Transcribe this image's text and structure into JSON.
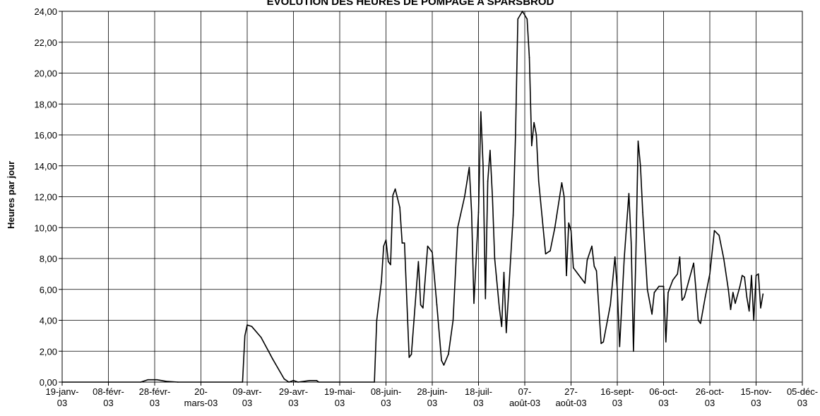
{
  "chart_data": {
    "type": "line",
    "title": "EVOLUTION DES HEURES DE POMPAGE A SPARSBROD",
    "xlabel": "",
    "ylabel": "Heures par jour",
    "ylim": [
      0,
      24
    ],
    "y_ticks": [
      "0,00",
      "2,00",
      "4,00",
      "6,00",
      "8,00",
      "10,00",
      "12,00",
      "14,00",
      "16,00",
      "18,00",
      "20,00",
      "22,00",
      "24,00"
    ],
    "x_range": [
      "2003-01-19",
      "2003-12-05"
    ],
    "x_ticks": [
      {
        "date": "2003-01-19",
        "line1": "19-janv-",
        "line2": "03"
      },
      {
        "date": "2003-02-08",
        "line1": "08-févr-",
        "line2": "03"
      },
      {
        "date": "2003-02-28",
        "line1": "28-févr-",
        "line2": "03"
      },
      {
        "date": "2003-03-20",
        "line1": "20-",
        "line2": "mars-03"
      },
      {
        "date": "2003-04-09",
        "line1": "09-avr-",
        "line2": "03"
      },
      {
        "date": "2003-04-29",
        "line1": "29-avr-",
        "line2": "03"
      },
      {
        "date": "2003-05-19",
        "line1": "19-mai-",
        "line2": "03"
      },
      {
        "date": "2003-06-08",
        "line1": "08-juin-",
        "line2": "03"
      },
      {
        "date": "2003-06-28",
        "line1": "28-juin-",
        "line2": "03"
      },
      {
        "date": "2003-07-18",
        "line1": "18-juil-",
        "line2": "03"
      },
      {
        "date": "2003-08-07",
        "line1": "07-",
        "line2": "août-03"
      },
      {
        "date": "2003-08-27",
        "line1": "27-",
        "line2": "août-03"
      },
      {
        "date": "2003-09-16",
        "line1": "16-sept-",
        "line2": "03"
      },
      {
        "date": "2003-10-06",
        "line1": "06-oct-",
        "line2": "03"
      },
      {
        "date": "2003-10-26",
        "line1": "26-oct-",
        "line2": "03"
      },
      {
        "date": "2003-11-15",
        "line1": "15-nov-",
        "line2": "03"
      },
      {
        "date": "2003-12-05",
        "line1": "05-déc-",
        "line2": "03"
      }
    ],
    "grid": true,
    "legend": "none",
    "line_color": "#000000",
    "series": [
      {
        "points": [
          [
            "2003-01-19",
            0
          ],
          [
            "2003-02-22",
            0
          ],
          [
            "2003-02-25",
            0.15
          ],
          [
            "2003-03-01",
            0.15
          ],
          [
            "2003-03-05",
            0.05
          ],
          [
            "2003-03-10",
            0
          ],
          [
            "2003-04-07",
            0
          ],
          [
            "2003-04-08",
            3.0
          ],
          [
            "2003-04-09",
            3.7
          ],
          [
            "2003-04-11",
            3.6
          ],
          [
            "2003-04-15",
            2.9
          ],
          [
            "2003-04-20",
            1.5
          ],
          [
            "2003-04-25",
            0.2
          ],
          [
            "2003-04-27",
            0
          ],
          [
            "2003-04-29",
            0.1
          ],
          [
            "2003-05-01",
            0
          ],
          [
            "2003-05-06",
            0.1
          ],
          [
            "2003-05-09",
            0.1
          ],
          [
            "2003-05-10",
            0
          ],
          [
            "2003-06-03",
            0
          ],
          [
            "2003-06-04",
            4.0
          ],
          [
            "2003-06-06",
            6.5
          ],
          [
            "2003-06-07",
            8.8
          ],
          [
            "2003-06-08",
            9.2
          ],
          [
            "2003-06-09",
            7.8
          ],
          [
            "2003-06-10",
            7.6
          ],
          [
            "2003-06-11",
            12.1
          ],
          [
            "2003-06-12",
            12.5
          ],
          [
            "2003-06-14",
            11.3
          ],
          [
            "2003-06-15",
            9.0
          ],
          [
            "2003-06-16",
            9.0
          ],
          [
            "2003-06-18",
            1.6
          ],
          [
            "2003-06-19",
            1.8
          ],
          [
            "2003-06-21",
            5.8
          ],
          [
            "2003-06-22",
            7.8
          ],
          [
            "2003-06-23",
            5.0
          ],
          [
            "2003-06-24",
            4.8
          ],
          [
            "2003-06-26",
            8.8
          ],
          [
            "2003-06-28",
            8.4
          ],
          [
            "2003-06-30",
            5.0
          ],
          [
            "2003-07-02",
            1.4
          ],
          [
            "2003-07-03",
            1.1
          ],
          [
            "2003-07-05",
            1.8
          ],
          [
            "2003-07-07",
            4.0
          ],
          [
            "2003-07-09",
            10.0
          ],
          [
            "2003-07-12",
            12.0
          ],
          [
            "2003-07-14",
            13.9
          ],
          [
            "2003-07-15",
            11.0
          ],
          [
            "2003-07-16",
            5.1
          ],
          [
            "2003-07-18",
            11.0
          ],
          [
            "2003-07-19",
            17.5
          ],
          [
            "2003-07-20",
            14.0
          ],
          [
            "2003-07-21",
            5.4
          ],
          [
            "2003-07-22",
            13.0
          ],
          [
            "2003-07-23",
            15.0
          ],
          [
            "2003-07-24",
            12.0
          ],
          [
            "2003-07-25",
            8.0
          ],
          [
            "2003-07-27",
            4.8
          ],
          [
            "2003-07-28",
            3.6
          ],
          [
            "2003-07-29",
            7.1
          ],
          [
            "2003-07-30",
            3.2
          ],
          [
            "2003-08-02",
            10.8
          ],
          [
            "2003-08-03",
            16.0
          ],
          [
            "2003-08-04",
            23.5
          ],
          [
            "2003-08-06",
            24.0
          ],
          [
            "2003-08-08",
            23.5
          ],
          [
            "2003-08-09",
            21.0
          ],
          [
            "2003-08-10",
            15.3
          ],
          [
            "2003-08-11",
            16.8
          ],
          [
            "2003-08-12",
            16.0
          ],
          [
            "2003-08-13",
            13.0
          ],
          [
            "2003-08-16",
            8.3
          ],
          [
            "2003-08-18",
            8.5
          ],
          [
            "2003-08-20",
            10.0
          ],
          [
            "2003-08-23",
            12.9
          ],
          [
            "2003-08-24",
            12.0
          ],
          [
            "2003-08-25",
            6.9
          ],
          [
            "2003-08-26",
            10.3
          ],
          [
            "2003-08-27",
            9.8
          ],
          [
            "2003-08-28",
            7.4
          ],
          [
            "2003-08-30",
            7.0
          ],
          [
            "2003-09-02",
            6.4
          ],
          [
            "2003-09-03",
            7.9
          ],
          [
            "2003-09-05",
            8.8
          ],
          [
            "2003-09-06",
            7.5
          ],
          [
            "2003-09-07",
            7.2
          ],
          [
            "2003-09-09",
            2.5
          ],
          [
            "2003-09-10",
            2.6
          ],
          [
            "2003-09-12",
            4.2
          ],
          [
            "2003-09-13",
            5.0
          ],
          [
            "2003-09-15",
            8.1
          ],
          [
            "2003-09-16",
            6.0
          ],
          [
            "2003-09-17",
            2.3
          ],
          [
            "2003-09-19",
            8.0
          ],
          [
            "2003-09-21",
            12.2
          ],
          [
            "2003-09-22",
            9.0
          ],
          [
            "2003-09-23",
            2.0
          ],
          [
            "2003-09-24",
            8.0
          ],
          [
            "2003-09-25",
            15.6
          ],
          [
            "2003-09-26",
            14.0
          ],
          [
            "2003-09-27",
            11.0
          ],
          [
            "2003-09-29",
            6.0
          ],
          [
            "2003-10-01",
            4.4
          ],
          [
            "2003-10-02",
            5.8
          ],
          [
            "2003-10-04",
            6.2
          ],
          [
            "2003-10-06",
            6.2
          ],
          [
            "2003-10-07",
            2.6
          ],
          [
            "2003-10-08",
            5.8
          ],
          [
            "2003-10-10",
            6.6
          ],
          [
            "2003-10-12",
            7.0
          ],
          [
            "2003-10-13",
            8.1
          ],
          [
            "2003-10-14",
            5.3
          ],
          [
            "2003-10-15",
            5.5
          ],
          [
            "2003-10-17",
            6.6
          ],
          [
            "2003-10-19",
            7.7
          ],
          [
            "2003-10-20",
            6.0
          ],
          [
            "2003-10-21",
            4.0
          ],
          [
            "2003-10-22",
            3.8
          ],
          [
            "2003-10-24",
            5.5
          ],
          [
            "2003-10-26",
            7.0
          ],
          [
            "2003-10-28",
            9.8
          ],
          [
            "2003-10-30",
            9.5
          ],
          [
            "2003-11-01",
            8.0
          ],
          [
            "2003-11-03",
            6.0
          ],
          [
            "2003-11-04",
            4.7
          ],
          [
            "2003-11-05",
            5.8
          ],
          [
            "2003-11-06",
            5.1
          ],
          [
            "2003-11-08",
            6.2
          ],
          [
            "2003-11-09",
            6.9
          ],
          [
            "2003-11-10",
            6.8
          ],
          [
            "2003-11-11",
            5.5
          ],
          [
            "2003-11-12",
            4.6
          ],
          [
            "2003-11-13",
            6.9
          ],
          [
            "2003-11-14",
            4.0
          ],
          [
            "2003-11-15",
            6.9
          ],
          [
            "2003-11-16",
            7.0
          ],
          [
            "2003-11-17",
            4.8
          ],
          [
            "2003-11-18",
            5.7
          ]
        ]
      }
    ]
  }
}
